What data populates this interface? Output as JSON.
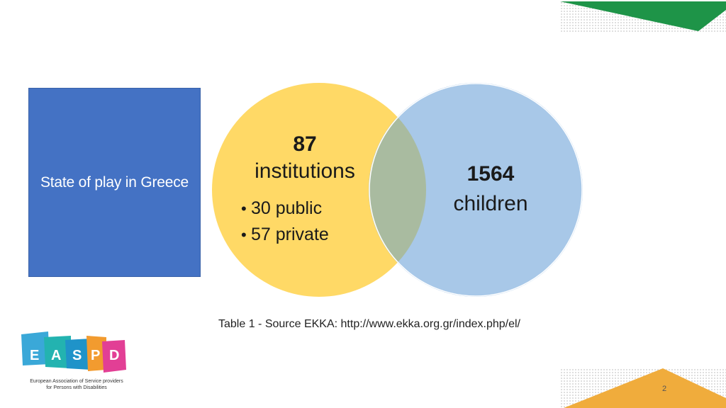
{
  "title": "State of play in Greece",
  "venn": {
    "left": {
      "number": "87",
      "label": "institutions",
      "bullets": [
        "30 public",
        "57 private"
      ],
      "color": "#ffd966"
    },
    "right": {
      "number": "1564",
      "label": "children",
      "color": "#9dc3e6"
    },
    "overlap_color": "#a9bba0"
  },
  "caption": "Table 1 - Source EKKA: http://www.ekka.org.gr/index.php/el/",
  "logo": {
    "letters": [
      "E",
      "A",
      "S",
      "P",
      "D"
    ],
    "tagline_line1": "European Association of Service providers",
    "tagline_line2": "for Persons with Disabilities"
  },
  "page_number": "2",
  "colors": {
    "title_box": "#4472c4",
    "accent_green": "#1e9448",
    "accent_orange": "#f0ac3c"
  }
}
